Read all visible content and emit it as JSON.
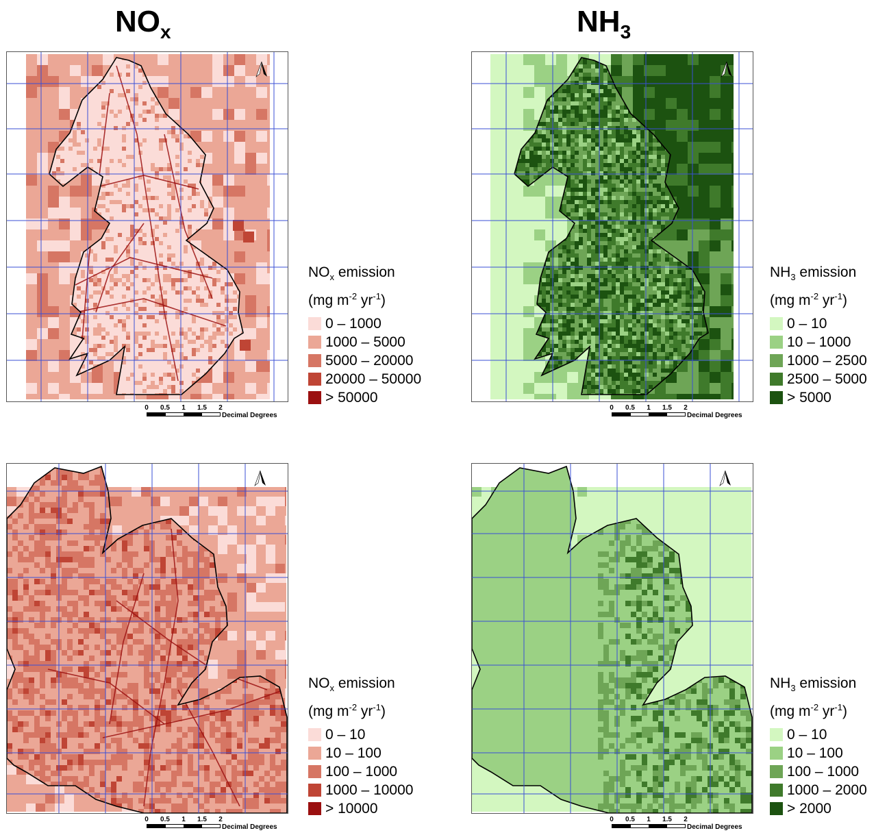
{
  "columns": {
    "nox": {
      "main": "NO",
      "sub": "x"
    },
    "nh3": {
      "main": "NH",
      "sub": "3"
    }
  },
  "scalebar": {
    "ticks": [
      "0",
      "0.5",
      "1",
      "1.5",
      "2"
    ],
    "unit": "Decimal Degrees"
  },
  "panels": [
    {
      "id": "nox-top",
      "palette": "red",
      "legend": {
        "title_main": "NO",
        "title_sub": "x",
        "title_rest": " emission",
        "units": "(mg m<sup>-2</sup> yr<sup>-1</sup>)",
        "items": [
          {
            "label": "0 – 1000",
            "color": "#fbdcd8"
          },
          {
            "label": "1000 – 5000",
            "color": "#eba796"
          },
          {
            "label": "5000 – 20000",
            "color": "#d67664"
          },
          {
            "label": "20000 – 50000",
            "color": "#bf4535"
          },
          {
            "label": "> 50000",
            "color": "#9b1010"
          }
        ]
      }
    },
    {
      "id": "nh3-top",
      "palette": "green",
      "legend": {
        "title_main": "NH",
        "title_sub": "3",
        "title_rest": " emission",
        "units": "(mg m<sup>-2</sup> yr<sup>-1</sup>)",
        "items": [
          {
            "label": "0 – 10",
            "color": "#d3f7c0"
          },
          {
            "label": "10 – 1000",
            "color": "#9bd184"
          },
          {
            "label": "1000 – 2500",
            "color": "#6ea556"
          },
          {
            "label": "2500 – 5000",
            "color": "#3f7a2b"
          },
          {
            "label": "> 5000",
            "color": "#1c5210"
          }
        ]
      }
    },
    {
      "id": "nox-bottom",
      "palette": "red",
      "legend": {
        "title_main": "NO",
        "title_sub": "x",
        "title_rest": " emission",
        "units": "(mg m<sup>-2</sup> yr<sup>-1</sup>)",
        "items": [
          {
            "label": "0 – 10",
            "color": "#fbdcd8"
          },
          {
            "label": "10 – 100",
            "color": "#eba796"
          },
          {
            "label": "100 – 1000",
            "color": "#d67664"
          },
          {
            "label": "1000 – 10000",
            "color": "#bf4535"
          },
          {
            "label": "> 10000",
            "color": "#9b1010"
          }
        ]
      }
    },
    {
      "id": "nh3-bottom",
      "palette": "green",
      "legend": {
        "title_main": "NH",
        "title_sub": "3",
        "title_rest": " emission",
        "units": "(mg m<sup>-2</sup> yr<sup>-1</sup>)",
        "items": [
          {
            "label": "0 – 10",
            "color": "#d3f7c0"
          },
          {
            "label": "10 – 100",
            "color": "#9bd184"
          },
          {
            "label": "100 – 1000",
            "color": "#6ea556"
          },
          {
            "label": "1000 – 2000",
            "color": "#3f7a2b"
          },
          {
            "label": "> 2000",
            "color": "#1c5210"
          }
        ]
      }
    }
  ],
  "colors": {
    "graticule": "#3a4fd6",
    "coastline": "#000000"
  }
}
